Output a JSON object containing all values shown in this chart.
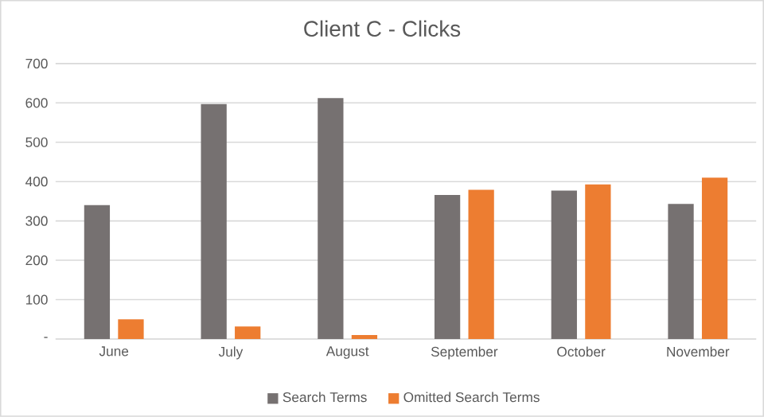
{
  "chart_data": {
    "type": "bar",
    "title": "Client C - Clicks",
    "categories": [
      "June",
      "July",
      "August",
      "September",
      "October",
      "November"
    ],
    "series": [
      {
        "name": "Search Terms",
        "color": "#767171",
        "values": [
          340,
          597,
          612,
          366,
          377,
          343
        ]
      },
      {
        "name": "Omitted Search Terms",
        "color": "#ed7d31",
        "values": [
          50,
          32,
          10,
          379,
          393,
          410
        ]
      }
    ],
    "ylim": [
      0,
      700
    ],
    "yticks": [
      {
        "value": 0,
        "label": "-"
      },
      100,
      200,
      300,
      400,
      500,
      600,
      700
    ],
    "grid": "y",
    "legend": "bottom"
  }
}
